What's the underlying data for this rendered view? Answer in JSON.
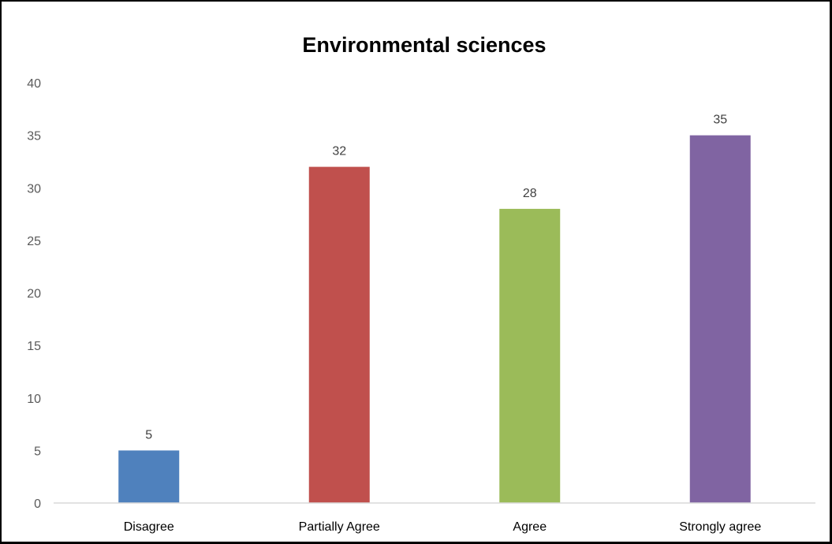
{
  "chart_data": {
    "type": "bar",
    "title": "Environmental sciences",
    "categories": [
      "Disagree",
      "Partially Agree",
      "Agree",
      "Strongly agree"
    ],
    "values": [
      5,
      32,
      28,
      35
    ],
    "colors": [
      "#4F81BD",
      "#C0504D",
      "#9BBB59",
      "#8064A2"
    ],
    "xlabel": "",
    "ylabel": "",
    "ylim": [
      0,
      40
    ],
    "yticks": [
      0,
      5,
      10,
      15,
      20,
      25,
      30,
      35,
      40
    ],
    "grid": false,
    "legend": "none",
    "data_labels": true
  },
  "colors": {
    "frame": "#000000",
    "axis_line": "#D9D9D9",
    "tick_text": "#595959",
    "data_label_text": "#404040"
  }
}
